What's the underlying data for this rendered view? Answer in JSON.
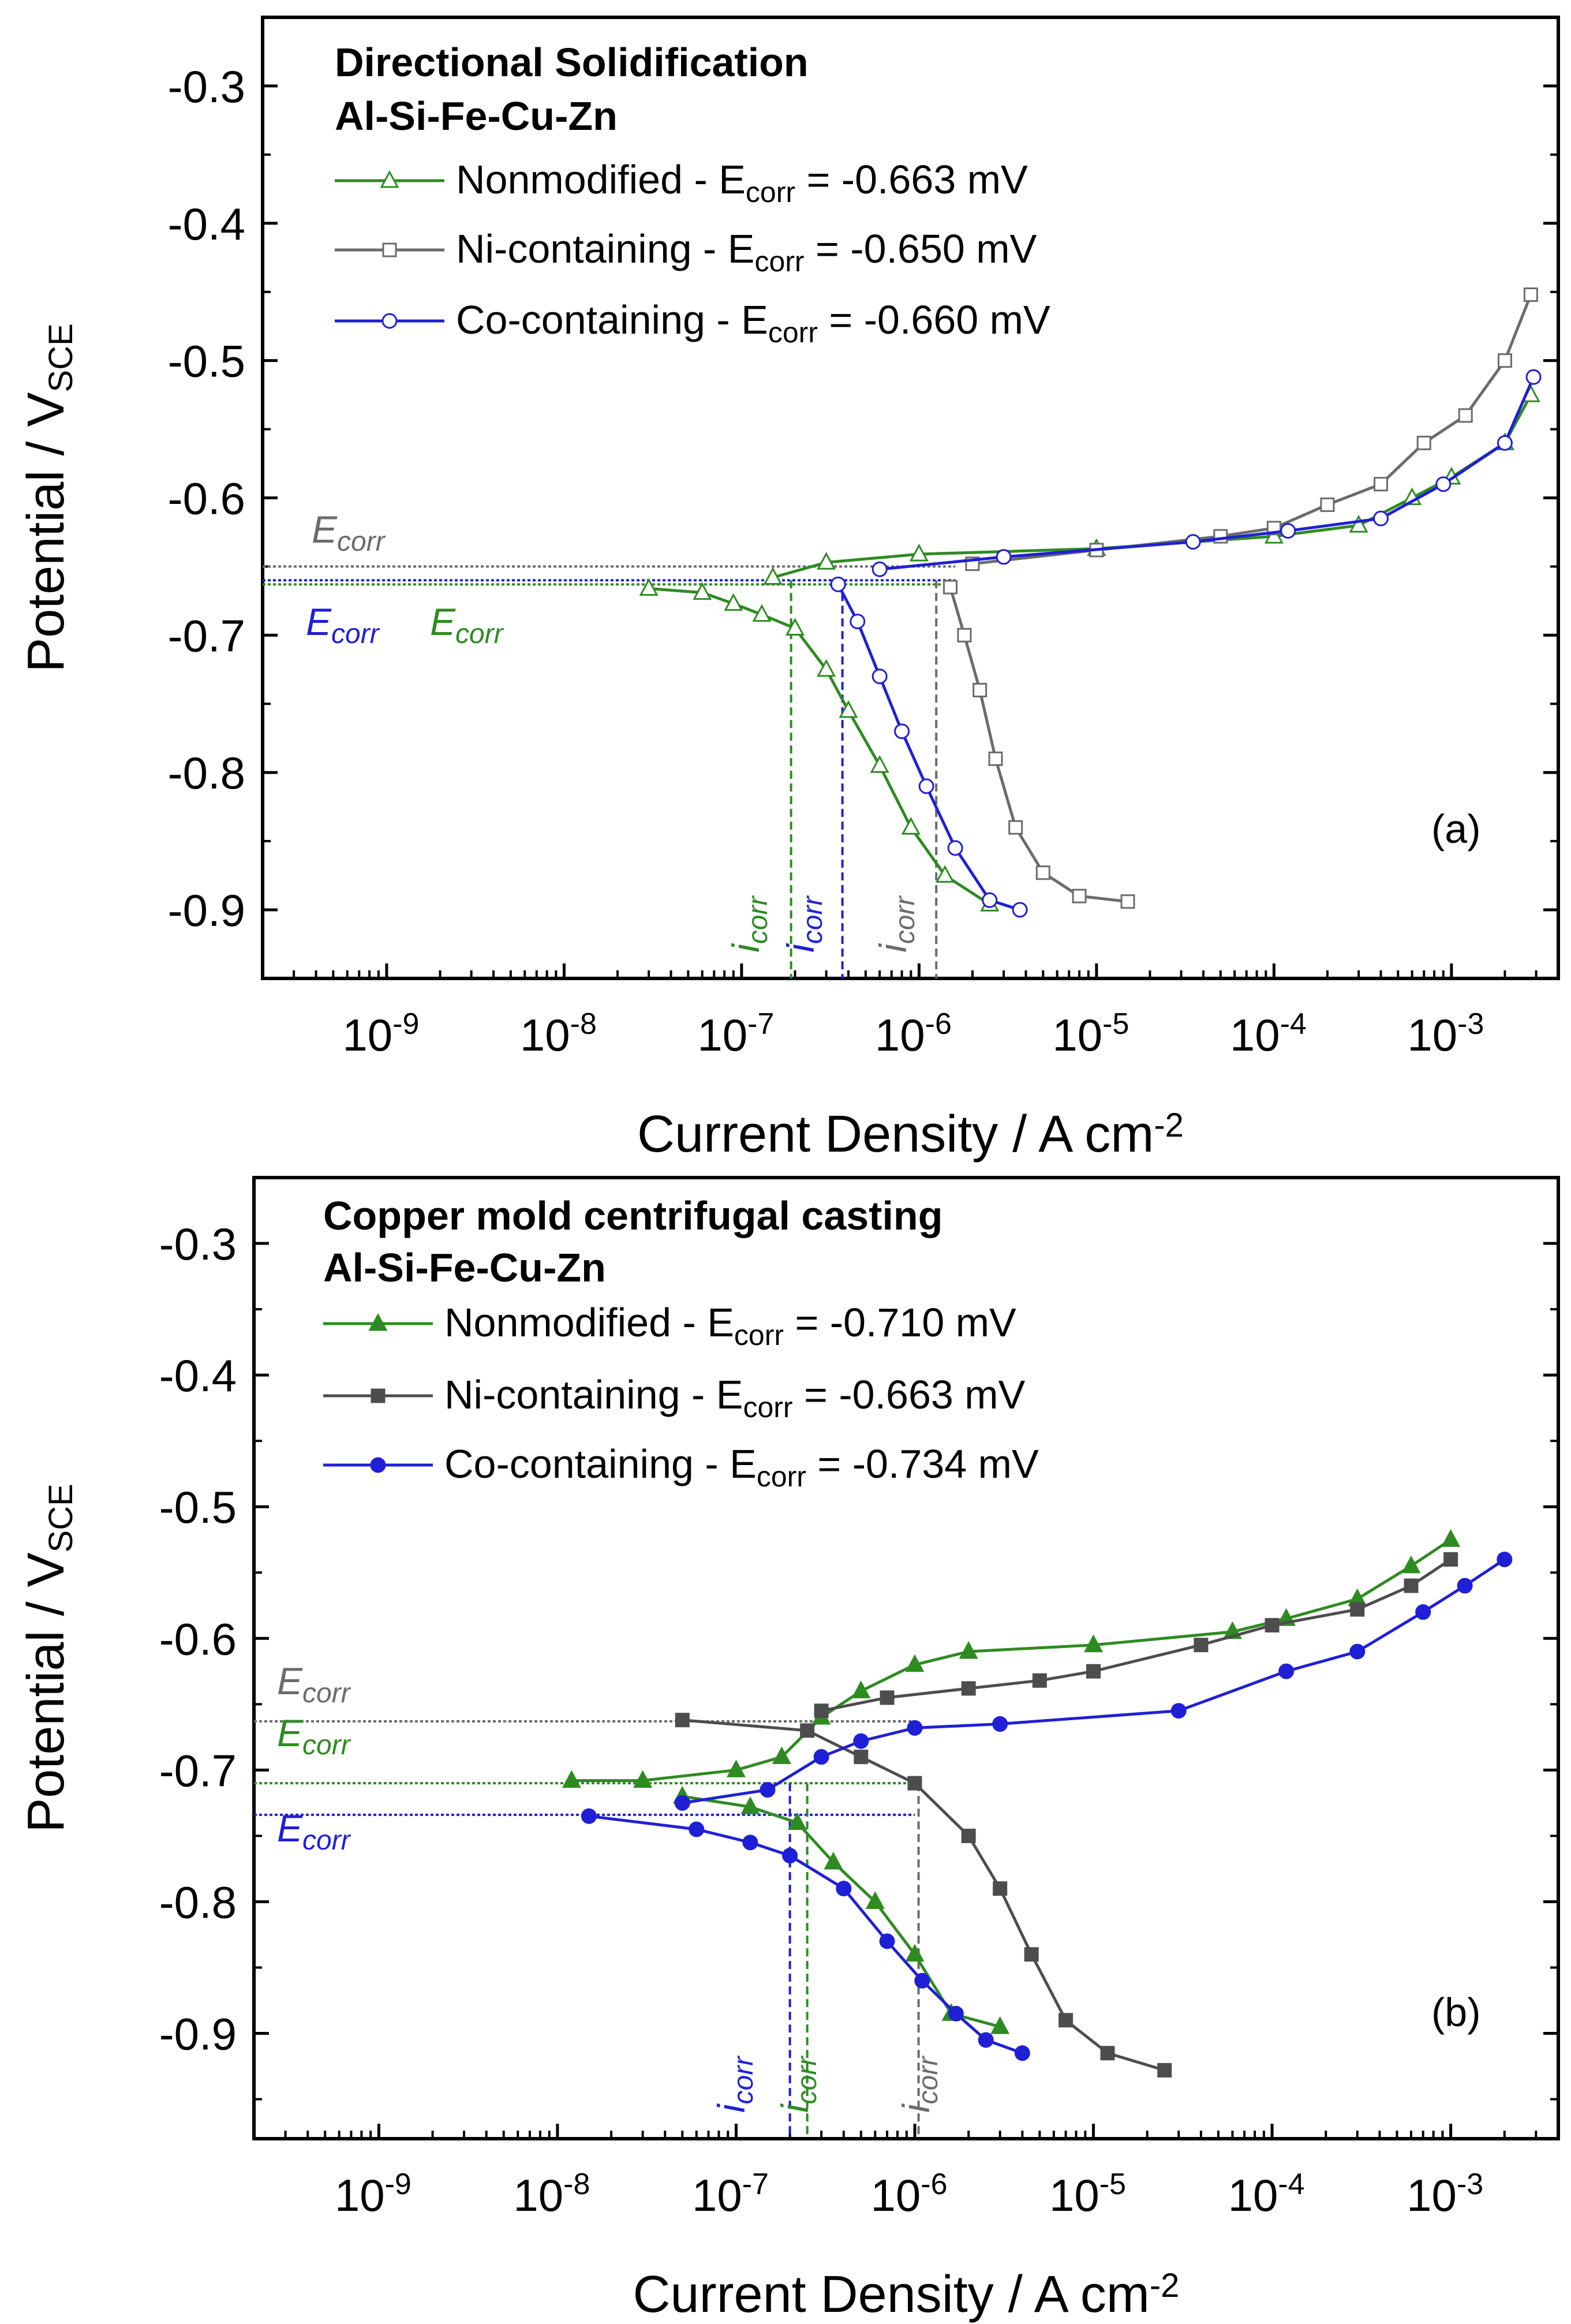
{
  "chart_data": [
    {
      "type": "line",
      "panel": "(a)",
      "title": "Directional Solidification",
      "subtitle": "Al-Si-Fe-Cu-Zn",
      "xlabel": "Current Density / A cm",
      "xlabel_sup": "-2",
      "ylabel": "Potential / V",
      "ylabel_sub": "SCE",
      "xscale": "log",
      "xlim": [
        2e-10,
        0.004
      ],
      "ylim": [
        -0.95,
        -0.25
      ],
      "yticks": [
        "-0.3",
        "-0.4",
        "-0.5",
        "-0.6",
        "-0.7",
        "-0.8",
        "-0.9"
      ],
      "ytick_values": [
        -0.3,
        -0.4,
        -0.5,
        -0.6,
        -0.7,
        -0.8,
        -0.9
      ],
      "xticks": [
        {
          "base": "10",
          "exp": "-9",
          "value": 1e-09
        },
        {
          "base": "10",
          "exp": "-8",
          "value": 1e-08
        },
        {
          "base": "10",
          "exp": "-7",
          "value": 1e-07
        },
        {
          "base": "10",
          "exp": "-6",
          "value": 1e-06
        },
        {
          "base": "10",
          "exp": "-5",
          "value": 1e-05
        },
        {
          "base": "10",
          "exp": "-4",
          "value": 0.0001
        },
        {
          "base": "10",
          "exp": "-3",
          "value": 0.001
        }
      ],
      "series": [
        {
          "name": "Nonmodified",
          "legend_prefix": "Nonmodified  - E",
          "legend_sub": "corr",
          "legend_suffix": " = -0.663 mV",
          "color": "#2e8b22",
          "marker": "triangle-open",
          "points": [
            [
              3e-08,
              -0.666
            ],
            [
              6e-08,
              -0.669
            ],
            [
              9e-08,
              -0.677
            ],
            [
              1.3e-07,
              -0.685
            ],
            [
              2e-07,
              -0.695
            ],
            [
              3e-07,
              -0.725
            ],
            [
              4e-07,
              -0.755
            ],
            [
              6e-07,
              -0.795
            ],
            [
              9e-07,
              -0.84
            ],
            [
              1.4e-06,
              -0.875
            ],
            [
              2.5e-06,
              -0.896
            ],
            [
              1.5e-07,
              -0.658
            ],
            [
              3e-07,
              -0.647
            ],
            [
              1e-06,
              -0.641
            ],
            [
              1e-05,
              -0.637
            ],
            [
              0.0001,
              -0.628
            ],
            [
              0.0003,
              -0.62
            ],
            [
              0.0006,
              -0.6
            ],
            [
              0.001,
              -0.585
            ],
            [
              0.002,
              -0.56
            ],
            [
              0.0028,
              -0.525
            ]
          ]
        },
        {
          "name": "Ni-containing",
          "legend_prefix": "Ni-containing - E",
          "legend_sub": "corr",
          "legend_suffix": " = -0.650 mV",
          "color": "#6b6b6b",
          "marker": "square-open",
          "points": [
            [
              1.5e-06,
              -0.665
            ],
            [
              1.8e-06,
              -0.7
            ],
            [
              2.2e-06,
              -0.74
            ],
            [
              2.7e-06,
              -0.79
            ],
            [
              3.5e-06,
              -0.84
            ],
            [
              5e-06,
              -0.873
            ],
            [
              8e-06,
              -0.89
            ],
            [
              1.5e-05,
              -0.894
            ],
            [
              2e-06,
              -0.648
            ],
            [
              1e-05,
              -0.638
            ],
            [
              5e-05,
              -0.628
            ],
            [
              0.0001,
              -0.622
            ],
            [
              0.0002,
              -0.605
            ],
            [
              0.0004,
              -0.59
            ],
            [
              0.0007,
              -0.56
            ],
            [
              0.0012,
              -0.54
            ],
            [
              0.002,
              -0.5
            ],
            [
              0.0028,
              -0.452
            ]
          ]
        },
        {
          "name": "Co-containing",
          "legend_prefix": "Co-containing - E",
          "legend_sub": "corr",
          "legend_suffix": " = -0.660 mV",
          "color": "#1f1fd6",
          "marker": "circle-open",
          "points": [
            [
              3.5e-07,
              -0.663
            ],
            [
              4.5e-07,
              -0.69
            ],
            [
              6e-07,
              -0.73
            ],
            [
              8e-07,
              -0.77
            ],
            [
              1.1e-06,
              -0.81
            ],
            [
              1.6e-06,
              -0.855
            ],
            [
              2.5e-06,
              -0.893
            ],
            [
              3.7e-06,
              -0.9
            ],
            [
              6e-07,
              -0.652
            ],
            [
              3e-06,
              -0.643
            ],
            [
              3.5e-05,
              -0.632
            ],
            [
              0.00012,
              -0.624
            ],
            [
              0.0004,
              -0.615
            ],
            [
              0.0009,
              -0.59
            ],
            [
              0.002,
              -0.56
            ],
            [
              0.0029,
              -0.512
            ]
          ]
        }
      ],
      "annotations": [
        {
          "kind": "ecorr",
          "label": "E",
          "sub": "corr",
          "color": "#6b6b6b",
          "value": -0.65
        },
        {
          "kind": "ecorr",
          "label": "E",
          "sub": "corr",
          "color": "#1f1fd6",
          "value": -0.66
        },
        {
          "kind": "ecorr",
          "label": "E",
          "sub": "corr",
          "color": "#2e8b22",
          "value": -0.663
        },
        {
          "kind": "icorr",
          "label": "i",
          "sub": "corr",
          "color": "#2e8b22",
          "value": 1.9e-07
        },
        {
          "kind": "icorr",
          "label": "i",
          "sub": "corr",
          "color": "#1f1fd6",
          "value": 3.7e-07
        },
        {
          "kind": "icorr",
          "label": "i",
          "sub": "corr",
          "color": "#6b6b6b",
          "value": 1.25e-06
        }
      ]
    },
    {
      "type": "line",
      "panel": "(b)",
      "title": "Copper mold centrifugal casting",
      "subtitle": "Al-Si-Fe-Cu-Zn",
      "xlabel": "Current Density / A cm",
      "xlabel_sup": "-2",
      "ylabel": "Potential / V",
      "ylabel_sub": "SCE",
      "xscale": "log",
      "xlim": [
        2e-10,
        0.004
      ],
      "ylim": [
        -0.98,
        -0.25
      ],
      "yticks": [
        "-0.3",
        "-0.4",
        "-0.5",
        "-0.6",
        "-0.7",
        "-0.8",
        "-0.9"
      ],
      "ytick_values": [
        -0.3,
        -0.4,
        -0.5,
        -0.6,
        -0.7,
        -0.8,
        -0.9
      ],
      "xticks": [
        {
          "base": "10",
          "exp": "-9",
          "value": 1e-09
        },
        {
          "base": "10",
          "exp": "-8",
          "value": 1e-08
        },
        {
          "base": "10",
          "exp": "-7",
          "value": 1e-07
        },
        {
          "base": "10",
          "exp": "-6",
          "value": 1e-06
        },
        {
          "base": "10",
          "exp": "-5",
          "value": 1e-05
        },
        {
          "base": "10",
          "exp": "-4",
          "value": 0.0001
        },
        {
          "base": "10",
          "exp": "-3",
          "value": 0.001
        }
      ],
      "series": [
        {
          "name": "Nonmodified",
          "legend_prefix": "Nonmodified - E",
          "legend_sub": "corr",
          "legend_suffix": " = -0.710 mV",
          "color": "#2e8b22",
          "marker": "triangle-filled",
          "points": [
            [
              1.2e-08,
              -0.708
            ],
            [
              3e-08,
              -0.708
            ],
            [
              1e-07,
              -0.7
            ],
            [
              1.8e-07,
              -0.69
            ],
            [
              3e-07,
              -0.66
            ],
            [
              5e-07,
              -0.64
            ],
            [
              1e-06,
              -0.62
            ],
            [
              2e-06,
              -0.61
            ],
            [
              1e-05,
              -0.605
            ],
            [
              6e-05,
              -0.595
            ],
            [
              0.00012,
              -0.585
            ],
            [
              0.0003,
              -0.57
            ],
            [
              0.0006,
              -0.545
            ],
            [
              0.001,
              -0.525
            ],
            [
              5e-08,
              -0.72
            ],
            [
              1.2e-07,
              -0.728
            ],
            [
              2.2e-07,
              -0.74
            ],
            [
              3.5e-07,
              -0.77
            ],
            [
              6e-07,
              -0.8
            ],
            [
              1e-06,
              -0.84
            ],
            [
              1.6e-06,
              -0.885
            ],
            [
              3e-06,
              -0.895
            ]
          ]
        },
        {
          "name": "Ni-containing",
          "legend_prefix": "Ni-containing - E",
          "legend_sub": "corr",
          "legend_suffix": " = -0.663 mV",
          "color": "#4d4d4d",
          "marker": "square-filled",
          "points": [
            [
              5e-08,
              -0.662
            ],
            [
              2.5e-07,
              -0.67
            ],
            [
              5e-07,
              -0.69
            ],
            [
              1e-06,
              -0.71
            ],
            [
              2e-06,
              -0.75
            ],
            [
              3e-06,
              -0.79
            ],
            [
              4.5e-06,
              -0.84
            ],
            [
              7e-06,
              -0.89
            ],
            [
              1.2e-05,
              -0.915
            ],
            [
              2.5e-05,
              -0.928
            ],
            [
              3e-07,
              -0.655
            ],
            [
              7e-07,
              -0.645
            ],
            [
              2e-06,
              -0.638
            ],
            [
              5e-06,
              -0.632
            ],
            [
              1e-05,
              -0.625
            ],
            [
              4e-05,
              -0.605
            ],
            [
              0.0001,
              -0.59
            ],
            [
              0.0003,
              -0.578
            ],
            [
              0.0006,
              -0.56
            ],
            [
              0.001,
              -0.54
            ]
          ]
        },
        {
          "name": "Co-containing",
          "legend_prefix": "Co-containing - E",
          "legend_sub": "corr",
          "legend_suffix": " = -0.734 mV",
          "color": "#1f1fd6",
          "marker": "circle-filled",
          "points": [
            [
              1.5e-08,
              -0.735
            ],
            [
              6e-08,
              -0.745
            ],
            [
              1.2e-07,
              -0.755
            ],
            [
              2e-07,
              -0.765
            ],
            [
              4e-07,
              -0.79
            ],
            [
              7e-07,
              -0.83
            ],
            [
              1.1e-06,
              -0.86
            ],
            [
              1.7e-06,
              -0.885
            ],
            [
              2.5e-06,
              -0.905
            ],
            [
              4e-06,
              -0.915
            ],
            [
              5e-08,
              -0.725
            ],
            [
              1.5e-07,
              -0.715
            ],
            [
              3e-07,
              -0.69
            ],
            [
              5e-07,
              -0.678
            ],
            [
              1e-06,
              -0.668
            ],
            [
              3e-06,
              -0.665
            ],
            [
              3e-05,
              -0.655
            ],
            [
              0.00012,
              -0.625
            ],
            [
              0.0003,
              -0.61
            ],
            [
              0.0007,
              -0.58
            ],
            [
              0.0012,
              -0.56
            ],
            [
              0.002,
              -0.54
            ]
          ]
        }
      ],
      "annotations": [
        {
          "kind": "ecorr",
          "label": "E",
          "sub": "corr",
          "color": "#6b6b6b",
          "value": -0.663
        },
        {
          "kind": "ecorr",
          "label": "E",
          "sub": "corr",
          "color": "#2e8b22",
          "value": -0.71
        },
        {
          "kind": "ecorr",
          "label": "E",
          "sub": "corr",
          "color": "#1f1fd6",
          "value": -0.734
        },
        {
          "kind": "icorr",
          "label": "i",
          "sub": "corr",
          "color": "#1f1fd6",
          "value": 2e-07
        },
        {
          "kind": "icorr",
          "label": "i",
          "sub": "corr",
          "color": "#2e8b22",
          "value": 2.5e-07
        },
        {
          "kind": "icorr",
          "label": "i",
          "sub": "corr",
          "color": "#6b6b6b",
          "value": 1.05e-06
        }
      ]
    }
  ]
}
